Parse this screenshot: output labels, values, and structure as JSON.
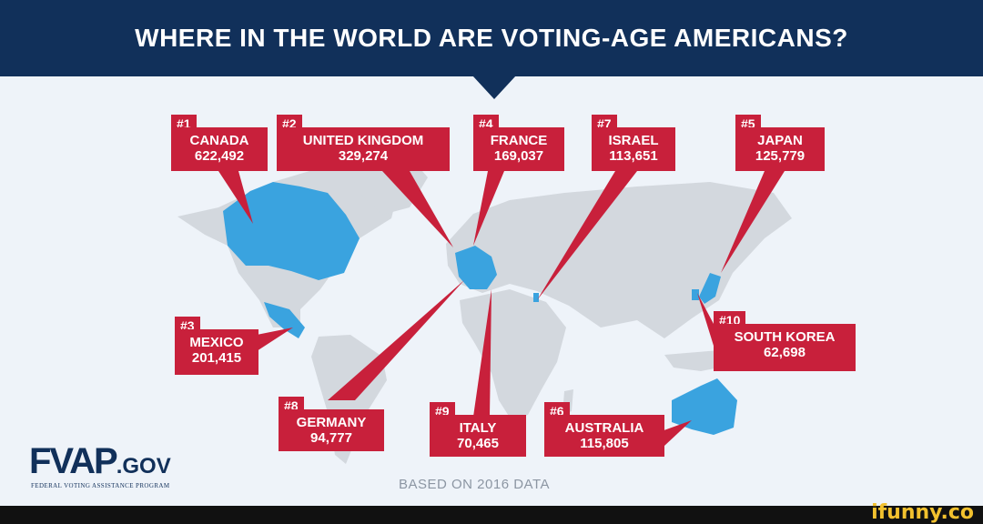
{
  "title": "WHERE IN THE WORLD ARE VOTING-AGE AMERICANS?",
  "colors": {
    "header": "#11305a",
    "label_red": "#c8203b",
    "highlight_blue": "#3aa3df",
    "land_gray": "#d3d8de",
    "background": "#eef3f9"
  },
  "countries": [
    {
      "rank": "#1",
      "name": "CANADA",
      "value": "622,492"
    },
    {
      "rank": "#2",
      "name": "UNITED KINGDOM",
      "value": "329,274"
    },
    {
      "rank": "#4",
      "name": "FRANCE",
      "value": "169,037"
    },
    {
      "rank": "#7",
      "name": "ISRAEL",
      "value": "113,651"
    },
    {
      "rank": "#5",
      "name": "JAPAN",
      "value": "125,779"
    },
    {
      "rank": "#3",
      "name": "MEXICO",
      "value": "201,415"
    },
    {
      "rank": "#10",
      "name": "SOUTH KOREA",
      "value": "62,698"
    },
    {
      "rank": "#8",
      "name": "GERMANY",
      "value": "94,777"
    },
    {
      "rank": "#9",
      "name": "ITALY",
      "value": "70,465"
    },
    {
      "rank": "#6",
      "name": "AUSTRALIA",
      "value": "115,805"
    }
  ],
  "logo": {
    "main": "FVAP",
    "suffix": ".GOV",
    "tagline": "FEDERAL VOTING ASSISTANCE PROGRAM"
  },
  "note": "BASED ON 2016 DATA",
  "watermark": "ifunny.co"
}
